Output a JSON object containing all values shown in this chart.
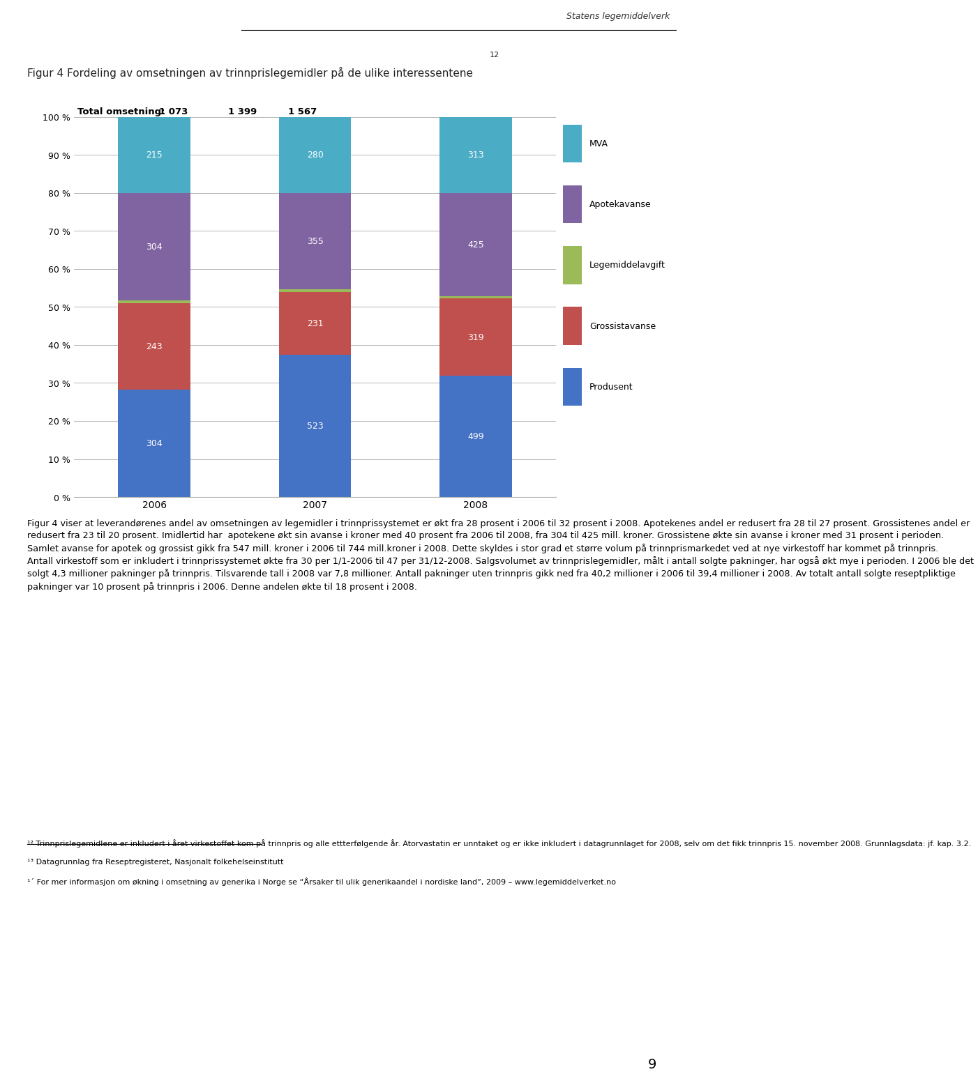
{
  "years": [
    "2006",
    "2007",
    "2008"
  ],
  "totals": [
    "1 073",
    "1 399",
    "1 567"
  ],
  "total_label": "Total omsetning:",
  "segments": [
    {
      "label": "Produsent",
      "values": [
        304,
        523,
        499
      ],
      "color": "#4472C4"
    },
    {
      "label": "Grossistavanse",
      "values": [
        243,
        231,
        319
      ],
      "color": "#C0504D"
    },
    {
      "label": "Legemiddelavgift",
      "values": [
        7,
        10,
        11
      ],
      "color": "#9BBB59"
    },
    {
      "label": "Apotekavanse",
      "values": [
        304,
        355,
        425
      ],
      "color": "#8064A2"
    },
    {
      "label": "MVA",
      "values": [
        215,
        280,
        313
      ],
      "color": "#4BACC6"
    }
  ],
  "header_text": "Statens legemiddelverk",
  "title": "Figur 4 Fordeling av omsetningen av trinnprislegemidler på de ulike interessentene",
  "title_superscript": "12",
  "ylabel": "",
  "ylim": [
    0,
    100
  ],
  "ytick_labels": [
    "0 %",
    "10 %",
    "20 %",
    "30 %",
    "40 %",
    "50 %",
    "60 %",
    "70 %",
    "80 %",
    "90 %",
    "100 %"
  ],
  "background_color": "#FFFFFF",
  "chart_bg": "#FFFFFF",
  "body_text": "Figur 4 viser at leverandørenes andel av omsetningen av legemidler i trinnprissystemet er økt fra 28 prosent i 2006 til 32 prosent i 2008. Apotekenes andel er redusert fra 28 til 27 prosent. Grossistenes andel er redusert fra 23 til 20 prosent. Imidlertid har  apotekene økt sin avanse i kroner med 40 prosent fra 2006 til 2008, fra 304 til 425 mill. kroner. Grossistene økte sin avanse i kroner med 31 prosent i perioden. Samlet avanse for apotek og grossist gikk fra 547 mill. kroner i 2006 til 744 mill.kroner i 2008. Dette skyldes i stor grad et større volum på trinnprismarkedet ved at nye virkestoff har kommet på trinnpris.\nAntall virkestoff som er inkludert i trinnprissystemet økte fra 30 per 1/1-2006 til 47 per 31/12-2008. Salgsvolumet av trinnprislegemidler, målt i antall solgte pakninger, har også økt mye i perioden. I 2006 ble det solgt 4,3 millioner pakninger på trinnpris. Tilsvarende tall i 2008 var 7,8 millioner. Antall pakninger uten trinnpris gikk ned fra 40,2 millioner i 2006 til 39,4 millioner i 2008. Av totalt antall solgte reseptpliktige pakninger var 10 prosent på trinnpris i 2006. Denne andelen økte til 18 prosent i 2008.",
  "footnote1": "¹² Trinnprislegemidlene er inkludert i året virkestoffet kom på trinnpris og alle ettterfølgende år. Atorvastatin er unntaket og er ikke inkludert i datagrunnlaget for 2008, selv om det fikk trinnpris 15. november 2008. Grunnlagsdata: jf. kap. 3.2.",
  "footnote2": "¹³ Datagrunnlag fra Reseptregisteret, Nasjonalt folkehelseinstitutt",
  "footnote3": "¹´ For mer informasjon om økning i omsetning av generika i Norge se “Årsaker til ulik generikaandel i nordiske land”, 2009 – www.legemiddelverket.no",
  "page_number": "9"
}
